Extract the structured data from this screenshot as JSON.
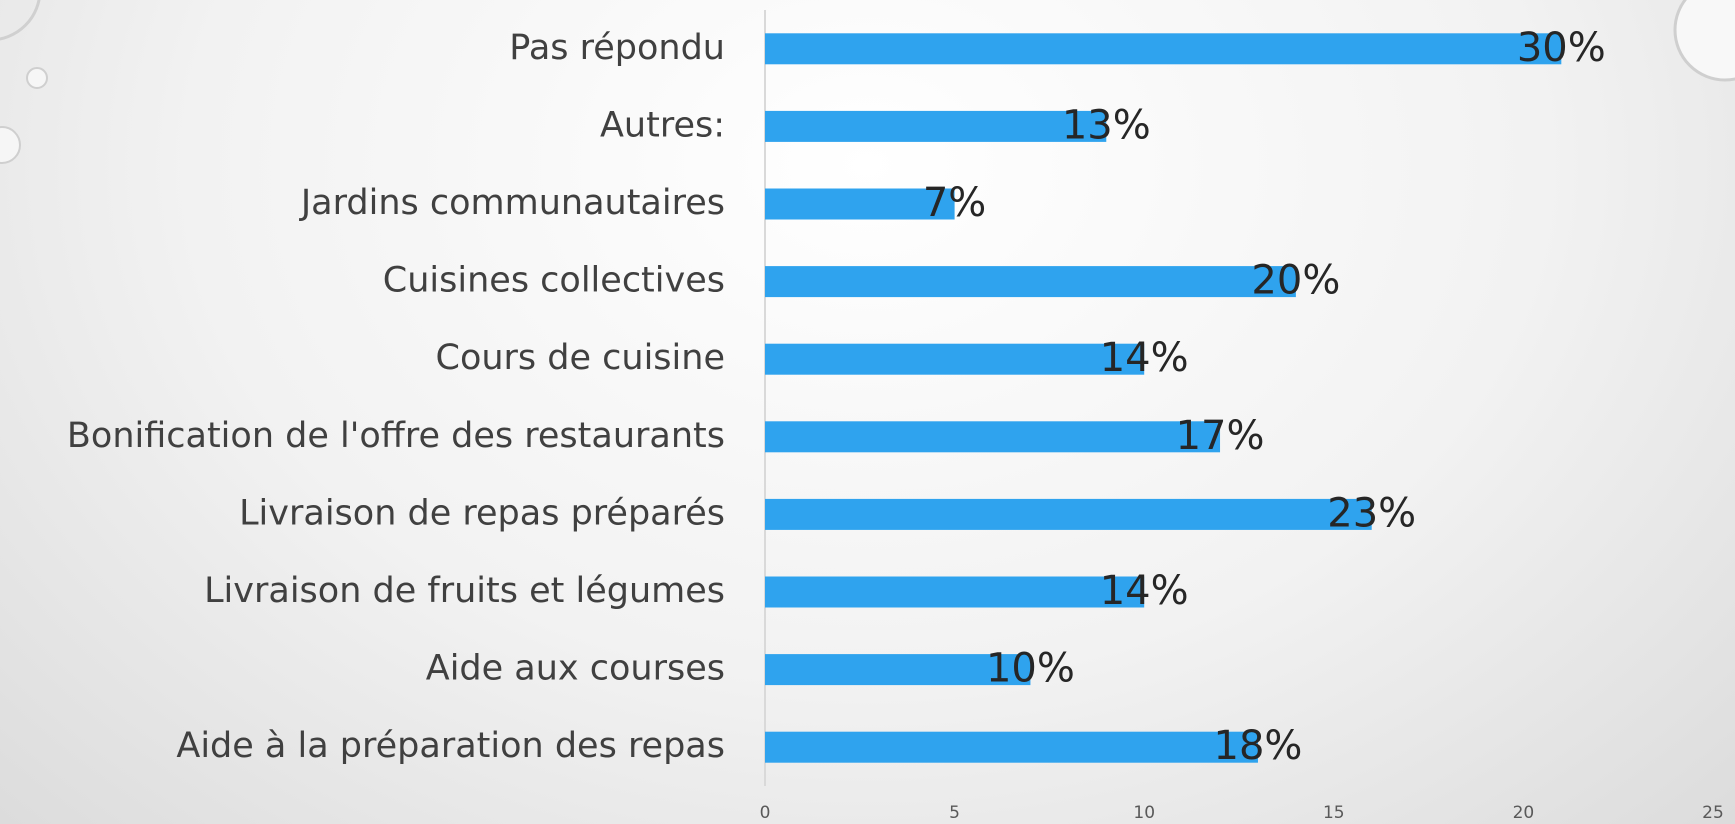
{
  "chart_data": {
    "type": "bar",
    "orientation": "horizontal",
    "categories": [
      "Pas répondu",
      "Autres:",
      "Jardins communautaires",
      "Cuisines collectives",
      "Cours de cuisine",
      "Bonification de l'offre des restaurants",
      "Livraison de repas préparés",
      "Livraison de fruits et légumes",
      "Aide aux courses",
      "Aide à la préparation des repas"
    ],
    "values": [
      21,
      9,
      5,
      14,
      10,
      12,
      16,
      10,
      7,
      13
    ],
    "percent_labels": [
      "30%",
      "13%",
      "7%",
      "20%",
      "14%",
      "17%",
      "23%",
      "14%",
      "10%",
      "18%"
    ],
    "color": "#2fa3ee",
    "xlim": [
      0,
      25
    ],
    "xticks": [
      0,
      5,
      10,
      15,
      20,
      25
    ],
    "grid": false
  }
}
